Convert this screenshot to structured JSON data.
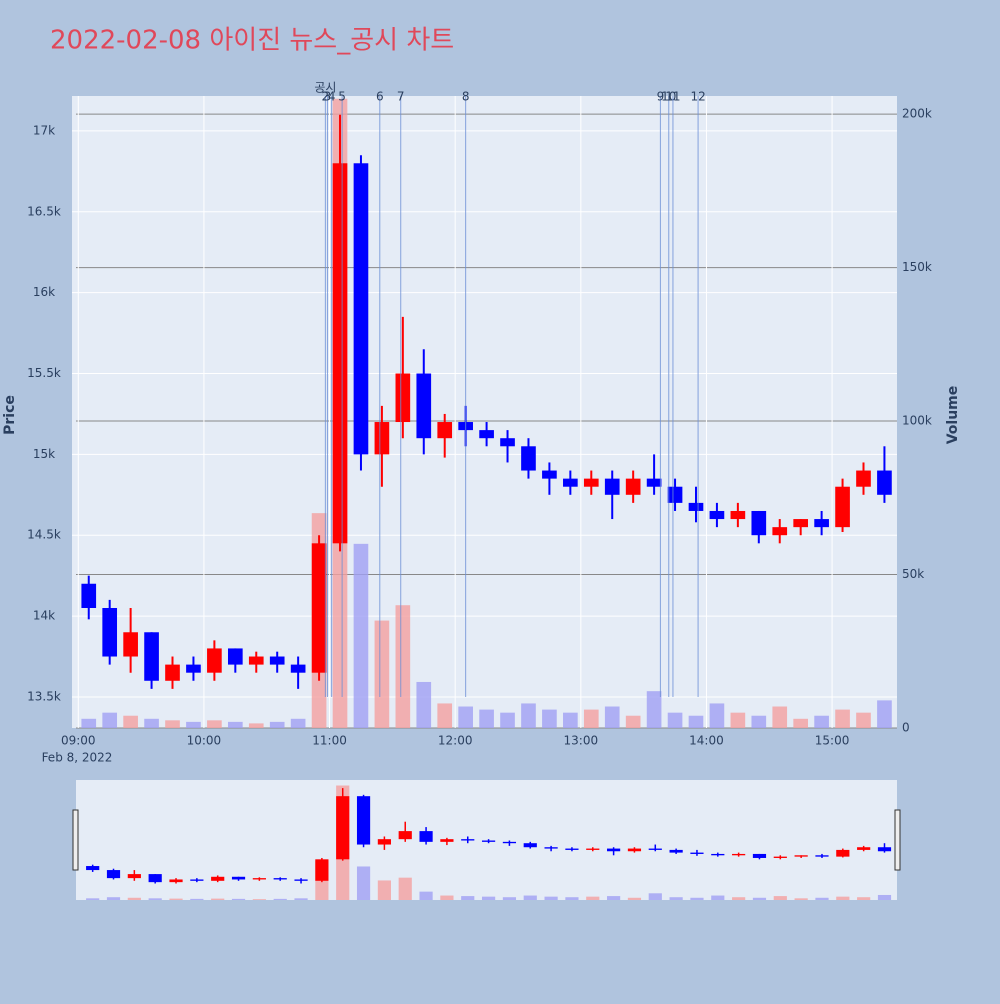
{
  "chart_data": {
    "type": "candlestick",
    "title": "2022-02-08 아이진 뉴스_공시 차트",
    "y_label": "Price",
    "y2_label": "Volume",
    "date_label": "Feb 8, 2022",
    "annotation": "공시",
    "increasing_color": "#ff0000",
    "decreasing_color": "#0000ff",
    "volume_increasing_color": "#f4a0a0",
    "volume_decreasing_color": "#a0a0f4",
    "x": [
      "09:00",
      "09:10",
      "09:20",
      "09:30",
      "09:40",
      "09:50",
      "10:00",
      "10:10",
      "10:20",
      "10:30",
      "10:40",
      "10:50",
      "11:00",
      "11:10",
      "11:20",
      "11:30",
      "11:40",
      "11:50",
      "12:00",
      "12:10",
      "12:20",
      "12:30",
      "12:40",
      "12:50",
      "13:00",
      "13:10",
      "13:20",
      "13:30",
      "13:40",
      "13:50",
      "14:00",
      "14:10",
      "14:20",
      "14:30",
      "14:40",
      "14:50",
      "15:00",
      "15:10",
      "15:20"
    ],
    "open": [
      14200,
      14050,
      13750,
      13900,
      13600,
      13700,
      13650,
      13800,
      13700,
      13750,
      13700,
      13650,
      14450,
      16800,
      15000,
      15200,
      15500,
      15100,
      15200,
      15150,
      15100,
      15050,
      14900,
      14850,
      14800,
      14850,
      14750,
      14850,
      14800,
      14700,
      14650,
      14600,
      14650,
      14500,
      14550,
      14600,
      14550,
      14800,
      14900
    ],
    "high": [
      14250,
      14100,
      14050,
      13900,
      13750,
      13750,
      13850,
      13800,
      13780,
      13780,
      13750,
      14500,
      17100,
      16850,
      15300,
      15850,
      15650,
      15250,
      15300,
      15200,
      15150,
      15100,
      14950,
      14900,
      14900,
      14900,
      14900,
      15000,
      14850,
      14800,
      14700,
      14700,
      14650,
      14600,
      14600,
      14650,
      14850,
      14950,
      15050
    ],
    "low": [
      13980,
      13700,
      13650,
      13550,
      13550,
      13600,
      13600,
      13650,
      13650,
      13650,
      13550,
      13600,
      14400,
      14900,
      14800,
      15100,
      15000,
      14980,
      15050,
      15050,
      14950,
      14850,
      14750,
      14750,
      14750,
      14600,
      14700,
      14750,
      14650,
      14580,
      14550,
      14550,
      14450,
      14450,
      14500,
      14500,
      14520,
      14750,
      14700
    ],
    "close": [
      14050,
      13750,
      13900,
      13600,
      13700,
      13650,
      13800,
      13700,
      13750,
      13700,
      13650,
      14450,
      16800,
      15000,
      15200,
      15500,
      15100,
      15200,
      15150,
      15100,
      15050,
      14900,
      14850,
      14800,
      14850,
      14750,
      14850,
      14800,
      14700,
      14650,
      14600,
      14650,
      14500,
      14550,
      14600,
      14550,
      14800,
      14900,
      14750
    ],
    "volume": [
      3000,
      5000,
      4000,
      3000,
      2500,
      2000,
      2500,
      2000,
      1500,
      2000,
      3000,
      70000,
      205000,
      60000,
      35000,
      40000,
      15000,
      8000,
      7000,
      6000,
      5000,
      8000,
      6000,
      5000,
      6000,
      7000,
      4000,
      12000,
      5000,
      4000,
      8000,
      5000,
      4000,
      7000,
      3000,
      4000,
      6000,
      5000,
      9000
    ],
    "events": {
      "x": [
        "10:58",
        "10:59",
        "11:01",
        "11:06",
        "11:24",
        "11:34",
        "12:05",
        "13:38",
        "13:42",
        "13:44",
        "13:56"
      ],
      "labels": [
        "2",
        "3",
        "4",
        "5",
        "6",
        "7",
        "8",
        "9",
        "10",
        "11",
        "12"
      ]
    },
    "xlim": [
      "08:57",
      "15:31"
    ],
    "xticks": [
      "09:00",
      "10:00",
      "11:00",
      "12:00",
      "13:00",
      "14:00",
      "15:00"
    ],
    "ylim": [
      13308,
      17216
    ],
    "yticks": [
      {
        "value": 13500,
        "label": "13.5k"
      },
      {
        "value": 14000,
        "label": "14k"
      },
      {
        "value": 14500,
        "label": "14.5k"
      },
      {
        "value": 15000,
        "label": "15k"
      },
      {
        "value": 15500,
        "label": "15.5k"
      },
      {
        "value": 16000,
        "label": "16k"
      },
      {
        "value": 16500,
        "label": "16.5k"
      },
      {
        "value": 17000,
        "label": "17k"
      }
    ],
    "y2lim": [
      0,
      205900
    ],
    "y2ticks": [
      0,
      {
        "value": 50000,
        "label": "50k"
      },
      {
        "value": 100000,
        "label": "100k"
      },
      {
        "value": 150000,
        "label": "150k"
      },
      {
        "value": 200000,
        "label": "200k"
      }
    ],
    "grid": true
  }
}
